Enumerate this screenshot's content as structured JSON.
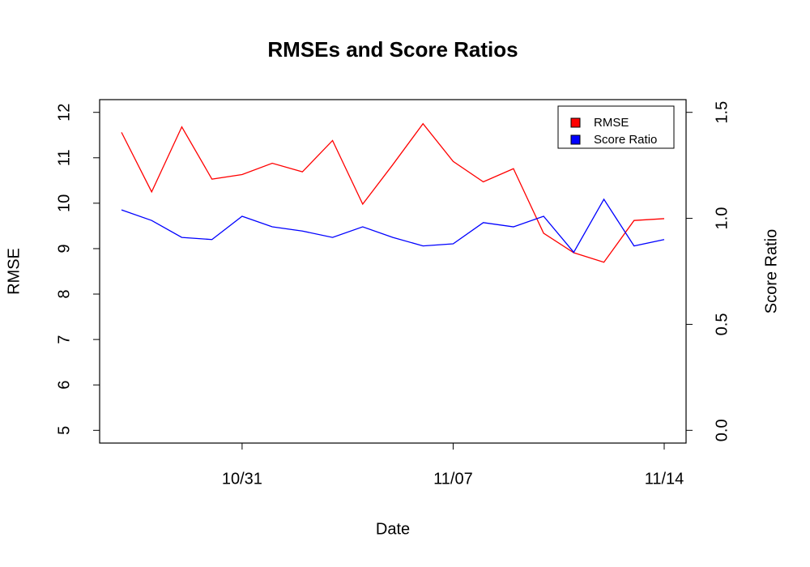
{
  "chart_data": {
    "type": "line",
    "title": "RMSEs and Score Ratios",
    "xlabel": "Date",
    "ylabel": "RMSE",
    "y2label": "Score Ratio",
    "categories": [
      null,
      null,
      null,
      null,
      "10/31",
      null,
      null,
      null,
      null,
      null,
      null,
      "11/07",
      null,
      null,
      null,
      null,
      null,
      null,
      "11/14"
    ],
    "series": [
      {
        "name": "RMSE",
        "color": "#ff0000",
        "axis": "y",
        "values": [
          11.56,
          10.25,
          11.68,
          10.53,
          10.63,
          10.88,
          10.69,
          11.38,
          9.98,
          10.85,
          11.75,
          10.92,
          10.47,
          10.76,
          9.34,
          8.91,
          8.7,
          9.62,
          9.66
        ]
      },
      {
        "name": "Score Ratio",
        "color": "#0000ff",
        "axis": "y2",
        "values": [
          1.04,
          0.99,
          0.91,
          0.9,
          1.01,
          0.96,
          0.94,
          0.91,
          0.96,
          0.91,
          0.87,
          0.88,
          0.98,
          0.96,
          1.01,
          0.84,
          1.09,
          0.87,
          0.9
        ]
      }
    ],
    "ylim": [
      4.72,
      12.28
    ],
    "yticks": [
      5,
      6,
      7,
      8,
      9,
      10,
      11,
      12
    ],
    "y2lim": [
      -0.06,
      1.56
    ],
    "y2ticks": [
      {
        "value": 0,
        "label": "0.0"
      },
      {
        "value": 0.5,
        "label": "0.5"
      },
      {
        "value": 1,
        "label": "1.0"
      },
      {
        "value": 1.5,
        "label": "1.5"
      }
    ],
    "grid": false,
    "legend": "topright"
  }
}
